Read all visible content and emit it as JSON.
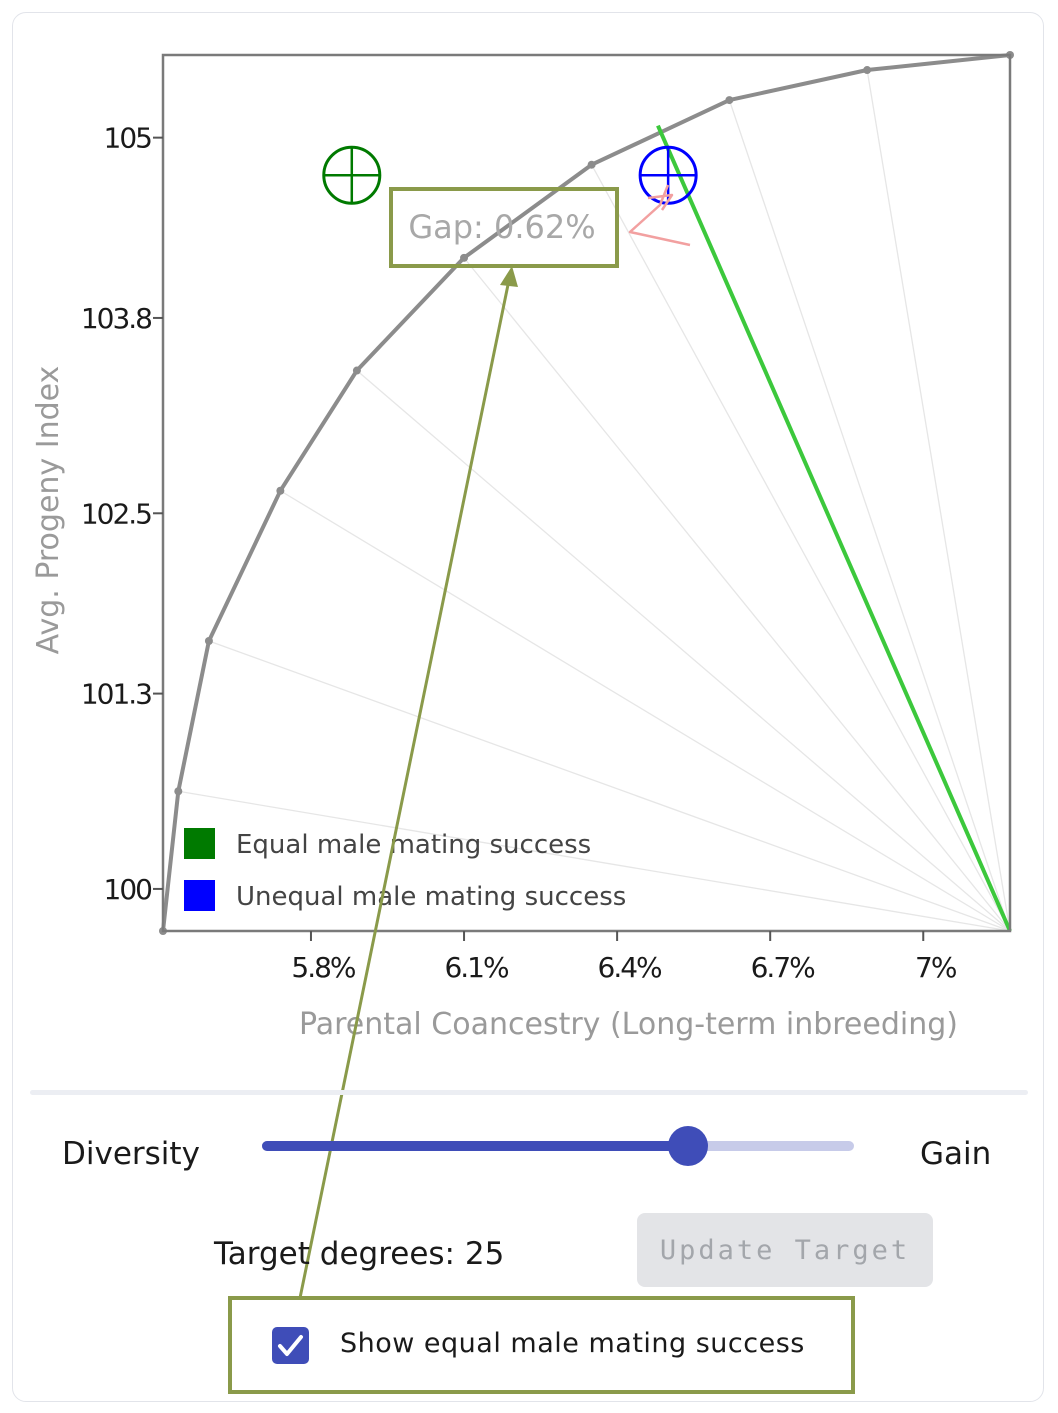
{
  "chart_data": {
    "type": "line",
    "xlabel": "Parental Coancestry (Long-term inbreeding)",
    "ylabel": "Avg. Progeny Index",
    "x_ticks": [
      {
        "value": 5.8,
        "label": "5.8%"
      },
      {
        "value": 6.1,
        "label": "6.1%"
      },
      {
        "value": 6.4,
        "label": "6.4%"
      },
      {
        "value": 6.7,
        "label": "6.7%"
      },
      {
        "value": 7.0,
        "label": "7%"
      }
    ],
    "y_ticks": [
      {
        "value": 100.0,
        "label": "100"
      },
      {
        "value": 101.3,
        "label": "101.3"
      },
      {
        "value": 102.5,
        "label": "102.5"
      },
      {
        "value": 103.8,
        "label": "103.8"
      },
      {
        "value": 105.0,
        "label": "105"
      }
    ],
    "xlim": [
      5.51,
      7.17
    ],
    "ylim": [
      99.72,
      105.55
    ],
    "series": [
      {
        "name": "Equal male mating success",
        "points": [
          [
            5.51,
            99.72
          ],
          [
            5.54,
            100.65
          ],
          [
            5.6,
            101.65
          ],
          [
            5.74,
            102.65
          ],
          [
            5.89,
            103.45
          ],
          [
            6.1,
            104.2
          ],
          [
            6.35,
            104.82
          ],
          [
            6.62,
            105.25
          ],
          [
            6.89,
            105.45
          ],
          [
            7.17,
            105.55
          ]
        ]
      }
    ],
    "legend": [
      {
        "label": "Equal male mating success",
        "color": "#007a00"
      },
      {
        "label": "Unequal male mating success",
        "color": "#0000ff"
      }
    ],
    "markers": [
      {
        "name": "Equal male mating success",
        "x": 5.88,
        "y": 104.75,
        "color": "#007a00"
      },
      {
        "name": "Unequal male mating success",
        "x": 6.5,
        "y": 104.75,
        "color": "#0000ff"
      }
    ],
    "target_line": {
      "from": [
        6.48,
        105.08
      ],
      "to": [
        7.17,
        99.72
      ],
      "color": "#3cc83c"
    },
    "rays_origin": [
      7.17,
      99.72
    ],
    "annotation": "Gap: 0.62%",
    "legend_position": "bottom-left"
  },
  "controls": {
    "slider_left_label": "Diversity",
    "slider_right_label": "Gain",
    "slider_value": 0.72,
    "target_text": "Target degrees: 25",
    "update_button_label": "Update Target",
    "checkbox_label": "Show equal male mating success",
    "checkbox_checked": true
  },
  "colors": {
    "accent": "#3f4db8",
    "highlight": "#8a9a4a",
    "curve": "#8c8c8c"
  }
}
